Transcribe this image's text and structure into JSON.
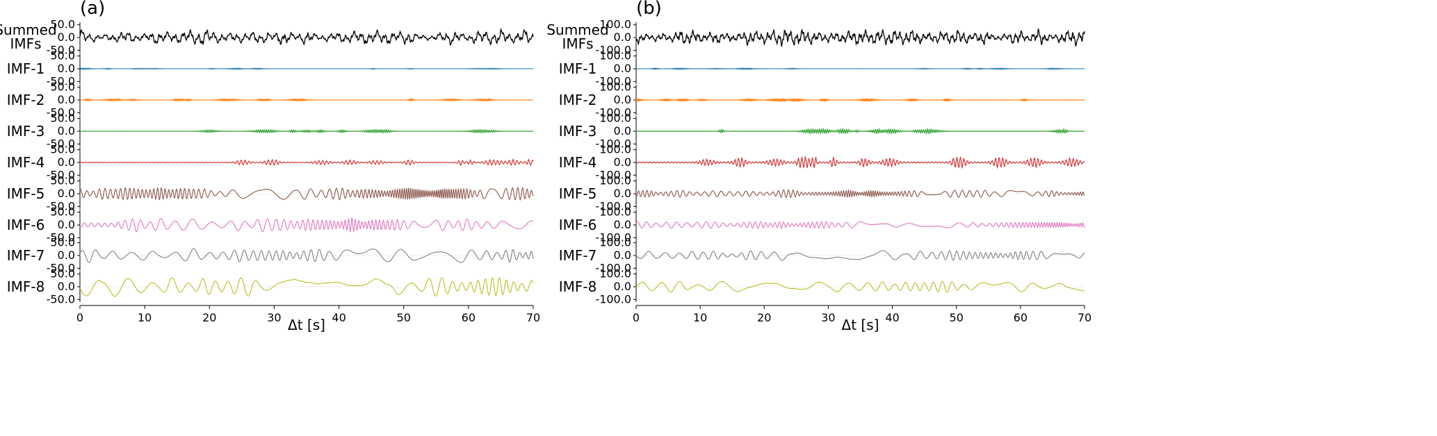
{
  "chart_data": [
    {
      "type": "line",
      "panel_label": "(a)",
      "xlabel": "Δt [s]",
      "xlim": [
        0,
        70
      ],
      "xticks": [
        0,
        10,
        20,
        30,
        40,
        50,
        60,
        70
      ],
      "xtick_labels": [
        "0",
        "10",
        "20",
        "30",
        "40",
        "50",
        "60",
        "70"
      ],
      "ylim": [
        -60,
        60
      ],
      "yticks": [
        50,
        0,
        -50
      ],
      "ytick_labels": [
        "50.0",
        "0.0",
        "-50.0"
      ],
      "series": [
        {
          "name": "Summed IMFs",
          "label_lines": [
            "Summed",
            "IMFs"
          ],
          "color": "#000000",
          "peak": 40,
          "period": 1.2,
          "kind": "noisy",
          "seed": 11
        },
        {
          "name": "IMF-1",
          "label_lines": [
            "IMF-1"
          ],
          "color": "#1f77b4",
          "peak": 2,
          "period": 0.08,
          "kind": "burst",
          "seed": 21
        },
        {
          "name": "IMF-2",
          "label_lines": [
            "IMF-2"
          ],
          "color": "#ff7f0e",
          "peak": 4,
          "period": 0.15,
          "kind": "burst",
          "seed": 31
        },
        {
          "name": "IMF-3",
          "label_lines": [
            "IMF-3"
          ],
          "color": "#2ca02c",
          "peak": 7,
          "period": 0.3,
          "kind": "burst",
          "seed": 41
        },
        {
          "name": "IMF-4",
          "label_lines": [
            "IMF-4"
          ],
          "color": "#d62728",
          "peak": 12,
          "period": 0.6,
          "kind": "burst",
          "seed": 51
        },
        {
          "name": "IMF-5",
          "label_lines": [
            "IMF-5"
          ],
          "color": "#8c564b",
          "peak": 25,
          "period": 1.0,
          "kind": "mod",
          "seed": 61
        },
        {
          "name": "IMF-6",
          "label_lines": [
            "IMF-6"
          ],
          "color": "#e377c2",
          "peak": 28,
          "period": 1.5,
          "kind": "mod",
          "seed": 71
        },
        {
          "name": "IMF-7",
          "label_lines": [
            "IMF-7"
          ],
          "color": "#7f7f7f",
          "peak": 30,
          "period": 2.6,
          "kind": "mod",
          "seed": 81
        },
        {
          "name": "IMF-8",
          "label_lines": [
            "IMF-8"
          ],
          "color": "#bcbd22",
          "peak": 40,
          "period": 4.0,
          "kind": "mod",
          "seed": 91
        }
      ]
    },
    {
      "type": "line",
      "panel_label": "(b)",
      "xlabel": "Δt [s]",
      "xlim": [
        0,
        70
      ],
      "xticks": [
        0,
        10,
        20,
        30,
        40,
        50,
        60,
        70
      ],
      "xtick_labels": [
        "0",
        "10",
        "20",
        "30",
        "40",
        "50",
        "60",
        "70"
      ],
      "ylim": [
        -120,
        120
      ],
      "yticks": [
        100,
        0,
        -100
      ],
      "ytick_labels": [
        "100.0",
        "0.0",
        "-100.0"
      ],
      "series": [
        {
          "name": "Summed IMFs",
          "label_lines": [
            "Summed",
            "IMFs"
          ],
          "color": "#000000",
          "peak": 80,
          "period": 0.9,
          "kind": "noisy",
          "seed": 12
        },
        {
          "name": "IMF-1",
          "label_lines": [
            "IMF-1"
          ],
          "color": "#1f77b4",
          "peak": 4,
          "period": 0.08,
          "kind": "burst",
          "seed": 22
        },
        {
          "name": "IMF-2",
          "label_lines": [
            "IMF-2"
          ],
          "color": "#ff7f0e",
          "peak": 10,
          "period": 0.15,
          "kind": "burst",
          "seed": 32
        },
        {
          "name": "IMF-3",
          "label_lines": [
            "IMF-3"
          ],
          "color": "#2ca02c",
          "peak": 18,
          "period": 0.3,
          "kind": "burst",
          "seed": 42
        },
        {
          "name": "IMF-4",
          "label_lines": [
            "IMF-4"
          ],
          "color": "#d62728",
          "peak": 45,
          "period": 0.55,
          "kind": "burst",
          "seed": 52
        },
        {
          "name": "IMF-5",
          "label_lines": [
            "IMF-5"
          ],
          "color": "#8c564b",
          "peak": 30,
          "period": 0.9,
          "kind": "mod",
          "seed": 62
        },
        {
          "name": "IMF-6",
          "label_lines": [
            "IMF-6"
          ],
          "color": "#e377c2",
          "peak": 28,
          "period": 1.4,
          "kind": "mod",
          "seed": 72
        },
        {
          "name": "IMF-7",
          "label_lines": [
            "IMF-7"
          ],
          "color": "#7f7f7f",
          "peak": 40,
          "period": 2.6,
          "kind": "mod",
          "seed": 82
        },
        {
          "name": "IMF-8",
          "label_lines": [
            "IMF-8"
          ],
          "color": "#bcbd22",
          "peak": 45,
          "period": 4.2,
          "kind": "mod",
          "seed": 92
        }
      ]
    }
  ]
}
